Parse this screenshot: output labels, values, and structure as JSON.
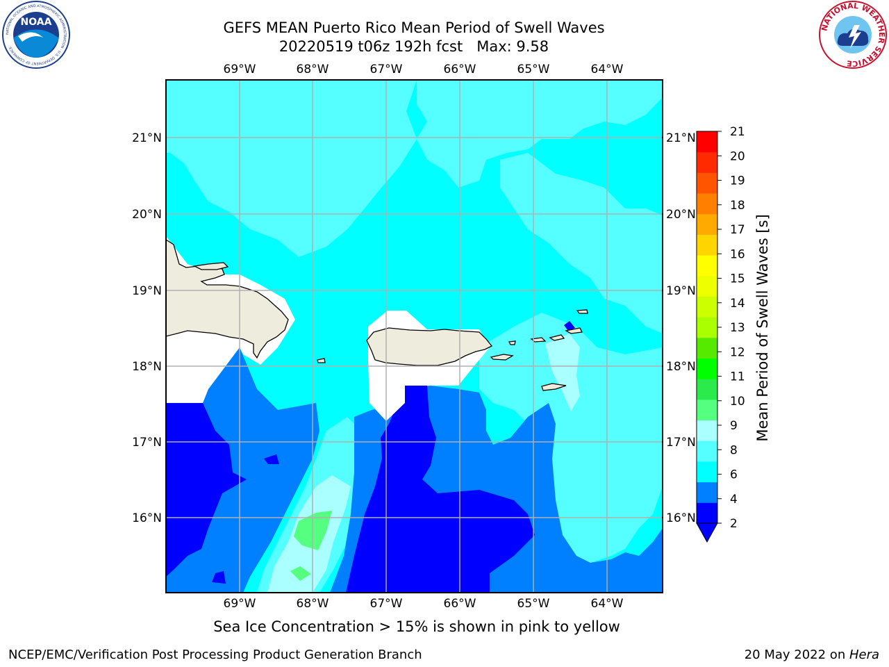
{
  "title": {
    "line1": "GEFS MEAN Puerto Rico Mean Period of Swell Waves",
    "line2": "20220519 t06z 192h fcst   Max: 9.58"
  },
  "map": {
    "lon_labels": [
      "69°W",
      "68°W",
      "67°W",
      "66°W",
      "65°W",
      "64°W"
    ],
    "lat_labels": [
      "21°N",
      "20°N",
      "19°N",
      "18°N",
      "17°N",
      "16°N"
    ]
  },
  "colorbar": {
    "label": "Mean Period of Swell Waves [s]",
    "ticks": [
      "21",
      "20",
      "19",
      "18",
      "17",
      "16",
      "15",
      "14",
      "13",
      "12",
      "11",
      "10",
      "9",
      "8",
      "6",
      "4",
      "2"
    ],
    "colors": [
      "#0000ff",
      "#0080ff",
      "#00ffff",
      "#55ffff",
      "#aaffff",
      "#55ff7f",
      "#2aea4c",
      "#00ff00",
      "#55ea00",
      "#aaff00",
      "#ccff00",
      "#eeff00",
      "#ffff00",
      "#ffd500",
      "#ffaa00",
      "#ff7f00",
      "#ff5500",
      "#ff2a00",
      "#ff0000"
    ]
  },
  "caption": "Sea Ice Concentration > 15% is shown in pink to yellow",
  "footer": {
    "left": "NCEP/EMC/Verification Post Processing Product Generation Branch",
    "date": "20 May 2022 on ",
    "machine": "Hera"
  },
  "logos": {
    "left": "NOAA",
    "left_ring": "NATIONAL OCEANIC AND ATMOSPHERIC ADMINISTRATION · U.S. DEPARTMENT OF COMMERCE",
    "right_ring": "NATIONAL WEATHER SERVICE"
  }
}
